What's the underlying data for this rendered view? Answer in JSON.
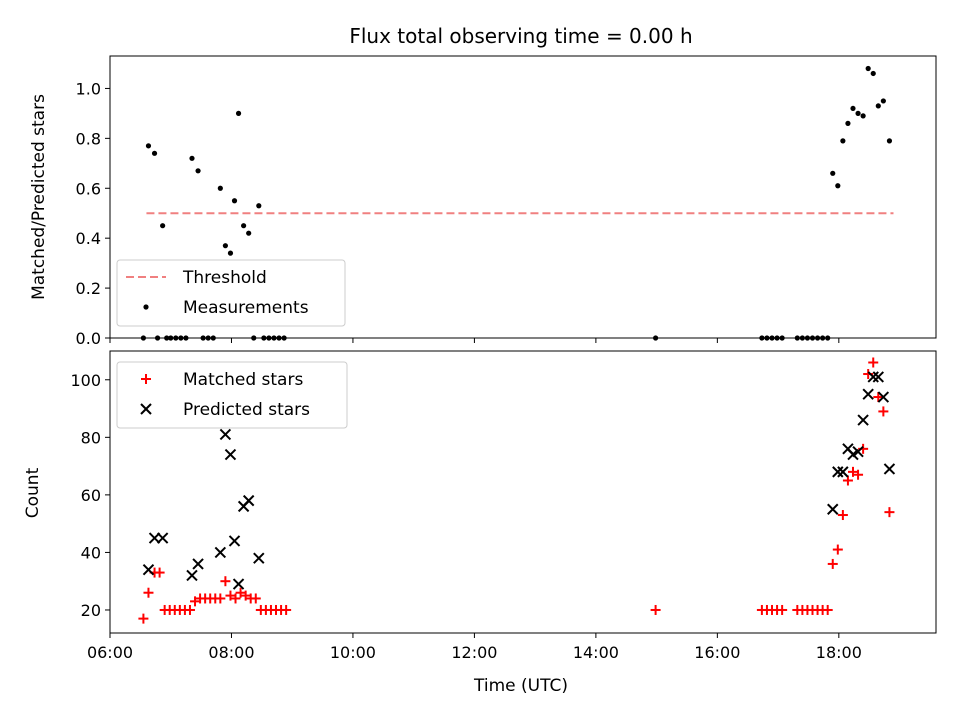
{
  "chart_data": [
    {
      "type": "scatter",
      "title": "Flux total observing time = 0.00 h",
      "xlabel": "",
      "ylabel": "Matched/Predicted stars",
      "xlim": [
        "06:00",
        "19:36"
      ],
      "ylim": [
        0,
        1.13
      ],
      "y_ticks": [
        0.0,
        0.2,
        0.4,
        0.6,
        0.8,
        1.0
      ],
      "y_tick_labels": [
        "0.0",
        "0.2",
        "0.4",
        "0.6",
        "0.8",
        "1.0"
      ],
      "grid": false,
      "legend_position": "lower-left",
      "series": [
        {
          "name": "Threshold",
          "style": "dashed-line",
          "color": "#f08080",
          "points": [
            [
              "06:36",
              0.5
            ],
            [
              "18:54",
              0.5
            ]
          ]
        },
        {
          "name": "Measurements",
          "style": "dot",
          "color": "#000000",
          "points": [
            [
              "06:33",
              0.0
            ],
            [
              "06:38",
              0.77
            ],
            [
              "06:44",
              0.74
            ],
            [
              "06:47",
              0.0
            ],
            [
              "06:52",
              0.45
            ],
            [
              "06:56",
              0.0
            ],
            [
              "07:00",
              0.0
            ],
            [
              "07:05",
              0.0
            ],
            [
              "07:10",
              0.0
            ],
            [
              "07:15",
              0.0
            ],
            [
              "07:21",
              0.72
            ],
            [
              "07:27",
              0.67
            ],
            [
              "07:32",
              0.0
            ],
            [
              "07:37",
              0.0
            ],
            [
              "07:42",
              0.0
            ],
            [
              "07:49",
              0.6
            ],
            [
              "07:54",
              0.37
            ],
            [
              "07:59",
              0.34
            ],
            [
              "08:03",
              0.55
            ],
            [
              "08:07",
              0.9
            ],
            [
              "08:12",
              0.45
            ],
            [
              "08:17",
              0.42
            ],
            [
              "08:22",
              0.0
            ],
            [
              "08:27",
              0.53
            ],
            [
              "08:32",
              0.0
            ],
            [
              "08:37",
              0.0
            ],
            [
              "08:42",
              0.0
            ],
            [
              "08:47",
              0.0
            ],
            [
              "08:52",
              0.0
            ],
            [
              "14:59",
              0.0
            ],
            [
              "16:44",
              0.0
            ],
            [
              "16:49",
              0.0
            ],
            [
              "16:54",
              0.0
            ],
            [
              "16:59",
              0.0
            ],
            [
              "17:04",
              0.0
            ],
            [
              "17:19",
              0.0
            ],
            [
              "17:24",
              0.0
            ],
            [
              "17:29",
              0.0
            ],
            [
              "17:34",
              0.0
            ],
            [
              "17:39",
              0.0
            ],
            [
              "17:44",
              0.0
            ],
            [
              "17:49",
              0.0
            ],
            [
              "17:54",
              0.66
            ],
            [
              "17:59",
              0.61
            ],
            [
              "18:04",
              0.79
            ],
            [
              "18:09",
              0.86
            ],
            [
              "18:14",
              0.92
            ],
            [
              "18:19",
              0.9
            ],
            [
              "18:24",
              0.89
            ],
            [
              "18:29",
              1.08
            ],
            [
              "18:34",
              1.06
            ],
            [
              "18:39",
              0.93
            ],
            [
              "18:44",
              0.95
            ],
            [
              "18:50",
              0.79
            ]
          ]
        }
      ]
    },
    {
      "type": "scatter",
      "title": "",
      "xlabel": "Time (UTC)",
      "ylabel": "Count",
      "xlim": [
        "06:00",
        "19:36"
      ],
      "ylim": [
        12,
        110
      ],
      "x_ticks": [
        "06:00",
        "08:00",
        "10:00",
        "12:00",
        "14:00",
        "16:00",
        "18:00"
      ],
      "y_ticks": [
        20,
        40,
        60,
        80,
        100
      ],
      "y_tick_labels": [
        "20",
        "40",
        "60",
        "80",
        "100"
      ],
      "grid": false,
      "legend_position": "upper-left",
      "series": [
        {
          "name": "Matched stars",
          "style": "plus",
          "color": "#ff0000",
          "points": [
            [
              "06:33",
              17
            ],
            [
              "06:38",
              26
            ],
            [
              "06:44",
              33
            ],
            [
              "06:49",
              33
            ],
            [
              "06:54",
              20
            ],
            [
              "06:59",
              20
            ],
            [
              "07:04",
              20
            ],
            [
              "07:09",
              20
            ],
            [
              "07:14",
              20
            ],
            [
              "07:19",
              20
            ],
            [
              "07:24",
              23
            ],
            [
              "07:29",
              24
            ],
            [
              "07:34",
              24
            ],
            [
              "07:39",
              24
            ],
            [
              "07:44",
              24
            ],
            [
              "07:49",
              24
            ],
            [
              "07:54",
              30
            ],
            [
              "07:59",
              25
            ],
            [
              "08:04",
              24
            ],
            [
              "08:09",
              26
            ],
            [
              "08:14",
              25
            ],
            [
              "08:19",
              24
            ],
            [
              "08:24",
              24
            ],
            [
              "08:29",
              20
            ],
            [
              "08:34",
              20
            ],
            [
              "08:39",
              20
            ],
            [
              "08:44",
              20
            ],
            [
              "08:49",
              20
            ],
            [
              "08:54",
              20
            ],
            [
              "14:59",
              20
            ],
            [
              "16:44",
              20
            ],
            [
              "16:49",
              20
            ],
            [
              "16:54",
              20
            ],
            [
              "16:59",
              20
            ],
            [
              "17:04",
              20
            ],
            [
              "17:19",
              20
            ],
            [
              "17:24",
              20
            ],
            [
              "17:29",
              20
            ],
            [
              "17:34",
              20
            ],
            [
              "17:39",
              20
            ],
            [
              "17:44",
              20
            ],
            [
              "17:49",
              20
            ],
            [
              "17:54",
              36
            ],
            [
              "17:59",
              41
            ],
            [
              "18:04",
              53
            ],
            [
              "18:09",
              65
            ],
            [
              "18:14",
              68
            ],
            [
              "18:19",
              67
            ],
            [
              "18:24",
              76
            ],
            [
              "18:29",
              102
            ],
            [
              "18:34",
              106
            ],
            [
              "18:39",
              94
            ],
            [
              "18:44",
              89
            ],
            [
              "18:50",
              54
            ]
          ]
        },
        {
          "name": "Predicted stars",
          "style": "cross",
          "color": "#000000",
          "points": [
            [
              "06:38",
              34
            ],
            [
              "06:44",
              45
            ],
            [
              "06:52",
              45
            ],
            [
              "07:21",
              32
            ],
            [
              "07:27",
              36
            ],
            [
              "07:49",
              40
            ],
            [
              "07:54",
              81
            ],
            [
              "07:59",
              74
            ],
            [
              "08:03",
              44
            ],
            [
              "08:07",
              29
            ],
            [
              "08:12",
              56
            ],
            [
              "08:17",
              58
            ],
            [
              "08:27",
              38
            ],
            [
              "17:54",
              55
            ],
            [
              "17:59",
              68
            ],
            [
              "18:04",
              68
            ],
            [
              "18:09",
              76
            ],
            [
              "18:14",
              74
            ],
            [
              "18:19",
              75
            ],
            [
              "18:24",
              86
            ],
            [
              "18:29",
              95
            ],
            [
              "18:34",
              101
            ],
            [
              "18:39",
              101
            ],
            [
              "18:44",
              94
            ],
            [
              "18:50",
              69
            ]
          ]
        }
      ]
    }
  ]
}
